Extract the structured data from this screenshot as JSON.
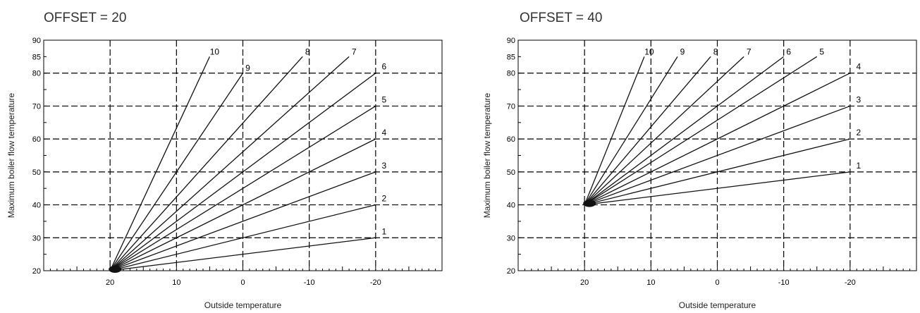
{
  "chart_data": [
    {
      "type": "line",
      "title": "OFFSET = 20",
      "xlabel": "Outside temperature",
      "ylabel": "Maximum boiler flow temperature",
      "x_reversed": true,
      "xlim": [
        30,
        -30
      ],
      "ylim": [
        20,
        90
      ],
      "x_ticks": [
        20,
        10,
        0,
        -10,
        -20
      ],
      "x_tick_labels": [
        "20",
        "10",
        "0",
        "-10",
        "-20"
      ],
      "y_ticks": [
        20,
        30,
        40,
        50,
        60,
        70,
        80,
        85,
        90
      ],
      "y_tick_labels": [
        "20",
        "30",
        "40",
        "50",
        "60",
        "70",
        "80",
        "85",
        "90"
      ],
      "grid": true,
      "series": [
        {
          "name": "1",
          "x": [
            20,
            -20
          ],
          "y": [
            20,
            30
          ]
        },
        {
          "name": "2",
          "x": [
            20,
            -20
          ],
          "y": [
            20,
            40
          ]
        },
        {
          "name": "3",
          "x": [
            20,
            -20
          ],
          "y": [
            20,
            50
          ]
        },
        {
          "name": "4",
          "x": [
            20,
            -20
          ],
          "y": [
            20,
            60
          ]
        },
        {
          "name": "5",
          "x": [
            20,
            -20
          ],
          "y": [
            20,
            70
          ]
        },
        {
          "name": "6",
          "x": [
            20,
            -20
          ],
          "y": [
            20,
            80
          ]
        },
        {
          "name": "7",
          "x": [
            20,
            -16
          ],
          "y": [
            20,
            85
          ]
        },
        {
          "name": "8",
          "x": [
            20,
            -9
          ],
          "y": [
            20,
            85
          ]
        },
        {
          "name": "9",
          "x": [
            20,
            0
          ],
          "y": [
            20,
            80
          ]
        },
        {
          "name": "10",
          "x": [
            20,
            5
          ],
          "y": [
            20,
            85
          ]
        }
      ]
    },
    {
      "type": "line",
      "title": "OFFSET = 40",
      "xlabel": "Outside temperature",
      "ylabel": "Maximum boiler flow temperature",
      "x_reversed": true,
      "xlim": [
        30,
        -30
      ],
      "ylim": [
        20,
        90
      ],
      "x_ticks": [
        20,
        10,
        0,
        -10,
        -20
      ],
      "x_tick_labels": [
        "20",
        "10",
        "0",
        "-10",
        "-20"
      ],
      "y_ticks": [
        20,
        30,
        40,
        50,
        60,
        70,
        80,
        85,
        90
      ],
      "y_tick_labels": [
        "20",
        "30",
        "40",
        "50",
        "60",
        "70",
        "80",
        "85",
        "90"
      ],
      "grid": true,
      "series": [
        {
          "name": "1",
          "x": [
            20,
            -20
          ],
          "y": [
            40,
            50
          ]
        },
        {
          "name": "2",
          "x": [
            20,
            -20
          ],
          "y": [
            40,
            60
          ]
        },
        {
          "name": "3",
          "x": [
            20,
            -20
          ],
          "y": [
            40,
            70
          ]
        },
        {
          "name": "4",
          "x": [
            20,
            -20
          ],
          "y": [
            40,
            80
          ]
        },
        {
          "name": "5",
          "x": [
            20,
            -15
          ],
          "y": [
            40,
            85
          ]
        },
        {
          "name": "6",
          "x": [
            20,
            -10
          ],
          "y": [
            40,
            85
          ]
        },
        {
          "name": "7",
          "x": [
            20,
            -4
          ],
          "y": [
            40,
            85
          ]
        },
        {
          "name": "8",
          "x": [
            20,
            1
          ],
          "y": [
            40,
            85
          ]
        },
        {
          "name": "9",
          "x": [
            20,
            6
          ],
          "y": [
            40,
            85
          ]
        },
        {
          "name": "10",
          "x": [
            20,
            11
          ],
          "y": [
            40,
            85
          ]
        }
      ]
    }
  ]
}
